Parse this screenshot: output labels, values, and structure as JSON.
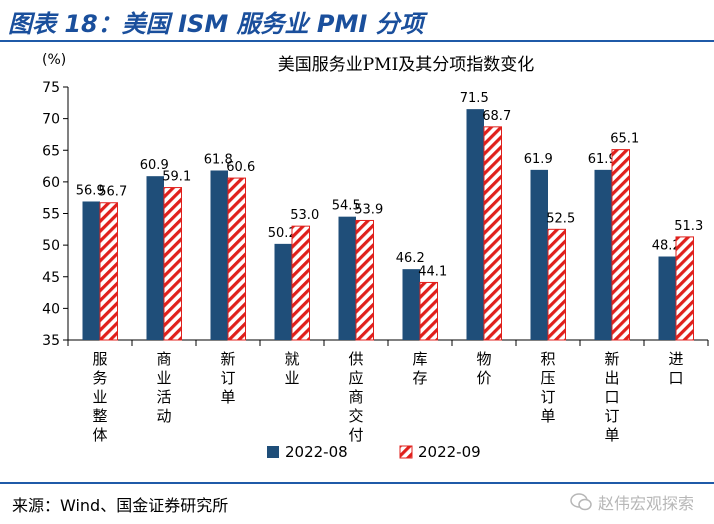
{
  "figure": {
    "title": "图表 18：美国 ISM 服务业 PMI 分项",
    "source": "来源：Wind、国金证券研究所",
    "watermark": "赵伟宏观探索",
    "watermark_icon": "wechat-icon"
  },
  "colors": {
    "series1": "#1f4e79",
    "series2_stripe": "#e0201c",
    "series2_bg": "#ffffff",
    "rule": "#1f5aa8"
  },
  "chart_data": {
    "type": "bar",
    "title": "美国服务业PMI及其分项指数变化",
    "ylabel": "(%)",
    "ylim": [
      35,
      75
    ],
    "yticks": [
      35,
      40,
      45,
      50,
      55,
      60,
      65,
      70,
      75
    ],
    "categories": [
      "服务业整体",
      "商业活动",
      "新订单",
      "就业",
      "供应商交付",
      "库存",
      "物价",
      "积压订单",
      "新出口订单",
      "进口"
    ],
    "series": [
      {
        "name": "2022-08",
        "values": [
          56.9,
          60.9,
          61.8,
          50.2,
          54.5,
          46.2,
          71.5,
          61.9,
          61.9,
          48.2
        ]
      },
      {
        "name": "2022-09",
        "values": [
          56.7,
          59.1,
          60.6,
          53.0,
          53.9,
          44.1,
          68.7,
          52.5,
          65.1,
          51.3
        ]
      }
    ],
    "legend_position": "bottom",
    "grid": false
  }
}
